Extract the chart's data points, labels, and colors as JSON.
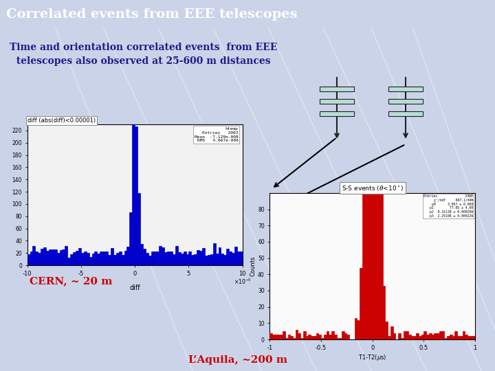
{
  "title": "Correlated events from EEE telescopes",
  "title_bg_color": "#8B2252",
  "title_text_color": "#FFFFFF",
  "bg_color": "#CBD3E8",
  "subtitle_line1": "Time and orientation correlated events  from EEE",
  "subtitle_line2": "  telescopes also observed at 25-600 m distances",
  "subtitle_color": "#1C1C8C",
  "cern_label": "CERN, ~ 20 m",
  "cern_label_color": "#CC0000",
  "aquila_label": "L’Aquila, ~200 m",
  "aquila_label_color": "#CC0000",
  "telescope_fill": "#B8DDD8",
  "telescope_stroke": "#202020",
  "diag_lines_color": "#FFFFFF",
  "diag_lines_alpha": 0.4
}
